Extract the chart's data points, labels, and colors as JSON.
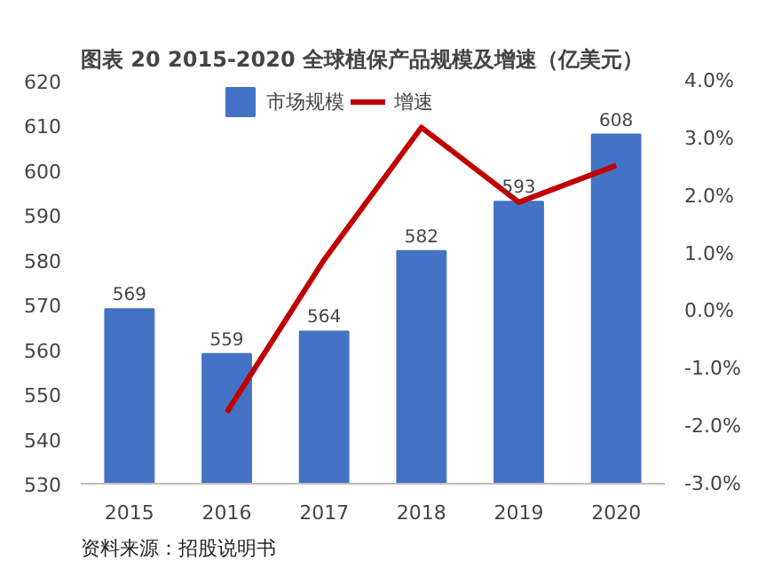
{
  "chart_data": {
    "type": "bar",
    "title": "图表 20 2015-2020 全球植保产品规模及增速（亿美元）",
    "categories": [
      "2015",
      "2016",
      "2017",
      "2018",
      "2019",
      "2020"
    ],
    "series": [
      {
        "name": "市场规模",
        "color": "#4472c4",
        "values": [
          569,
          559,
          564,
          582,
          593,
          608
        ]
      },
      {
        "name": "增速",
        "type": "line",
        "axis": "y2",
        "color": "#c00000",
        "values": [
          null,
          -1.76,
          0.89,
          3.19,
          1.89,
          2.53
        ]
      }
    ],
    "ylim": [
      530,
      620
    ],
    "yticks": [
      530,
      540,
      550,
      560,
      570,
      580,
      590,
      600,
      610,
      620
    ],
    "y2lim": [
      -3,
      4
    ],
    "y2ticks": [
      {
        "value": -3,
        "label": "-3.0%"
      },
      {
        "value": -2,
        "label": "-2.0%"
      },
      {
        "value": -1,
        "label": "-1.0%"
      },
      {
        "value": 0,
        "label": "0.0%"
      },
      {
        "value": 1,
        "label": "1.0%"
      },
      {
        "value": 2,
        "label": "2.0%"
      },
      {
        "value": 3,
        "label": "3.0%"
      },
      {
        "value": 4,
        "label": "4.0%"
      }
    ],
    "value_labels": [
      "569",
      "559",
      "564",
      "582",
      "593",
      "608"
    ],
    "legend": "top",
    "grid": false,
    "marker": "none",
    "annotations": [
      "资料来源：招股说明书"
    ]
  }
}
